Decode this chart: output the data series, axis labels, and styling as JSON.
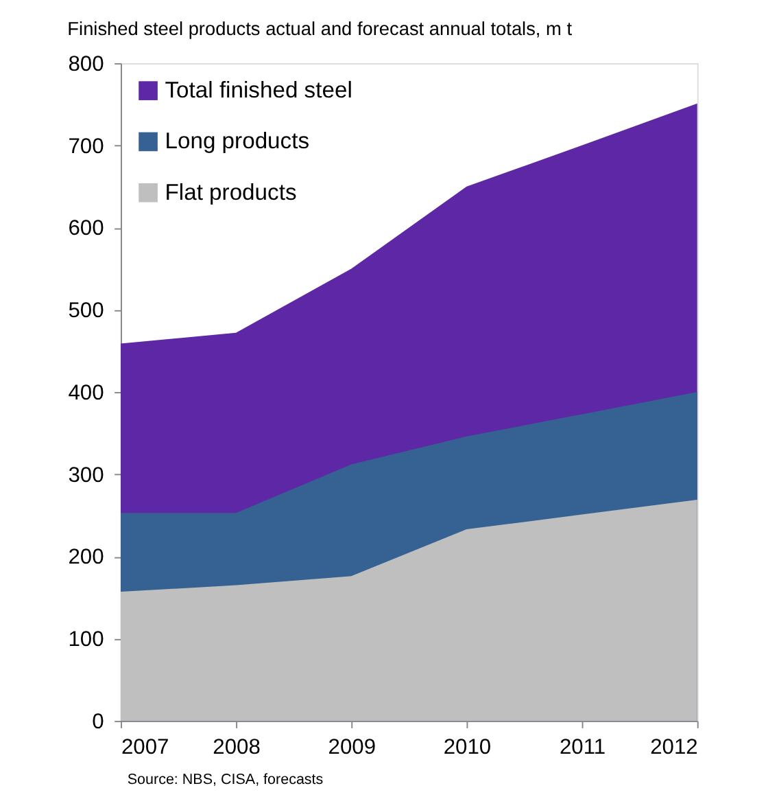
{
  "chart_data": {
    "type": "area",
    "title": "Finished steel products actual and forecast annual totals, m t",
    "x": [
      2007,
      2008,
      2009,
      2010,
      2011,
      2012
    ],
    "series": [
      {
        "name": "Total finished steel",
        "color": "#5e27a6",
        "values": [
          459,
          472,
          550,
          650,
          700,
          751
        ]
      },
      {
        "name": "Long products",
        "color": "#356292",
        "values": [
          253,
          253,
          312,
          346,
          373,
          400
        ]
      },
      {
        "name": "Flat products",
        "color": "#bfbfbf",
        "values": [
          157,
          165,
          176,
          233,
          251,
          269
        ]
      }
    ],
    "xlim": [
      2007,
      2012
    ],
    "xticks": [
      2007,
      2008,
      2009,
      2010,
      2011,
      2012
    ],
    "ylim": [
      0,
      800
    ],
    "yticks": [
      0,
      100,
      200,
      300,
      400,
      500,
      600,
      700,
      800
    ],
    "grid": false,
    "legend": "top left",
    "annotations": [
      "Source: NBS, CISA, forecasts"
    ]
  }
}
